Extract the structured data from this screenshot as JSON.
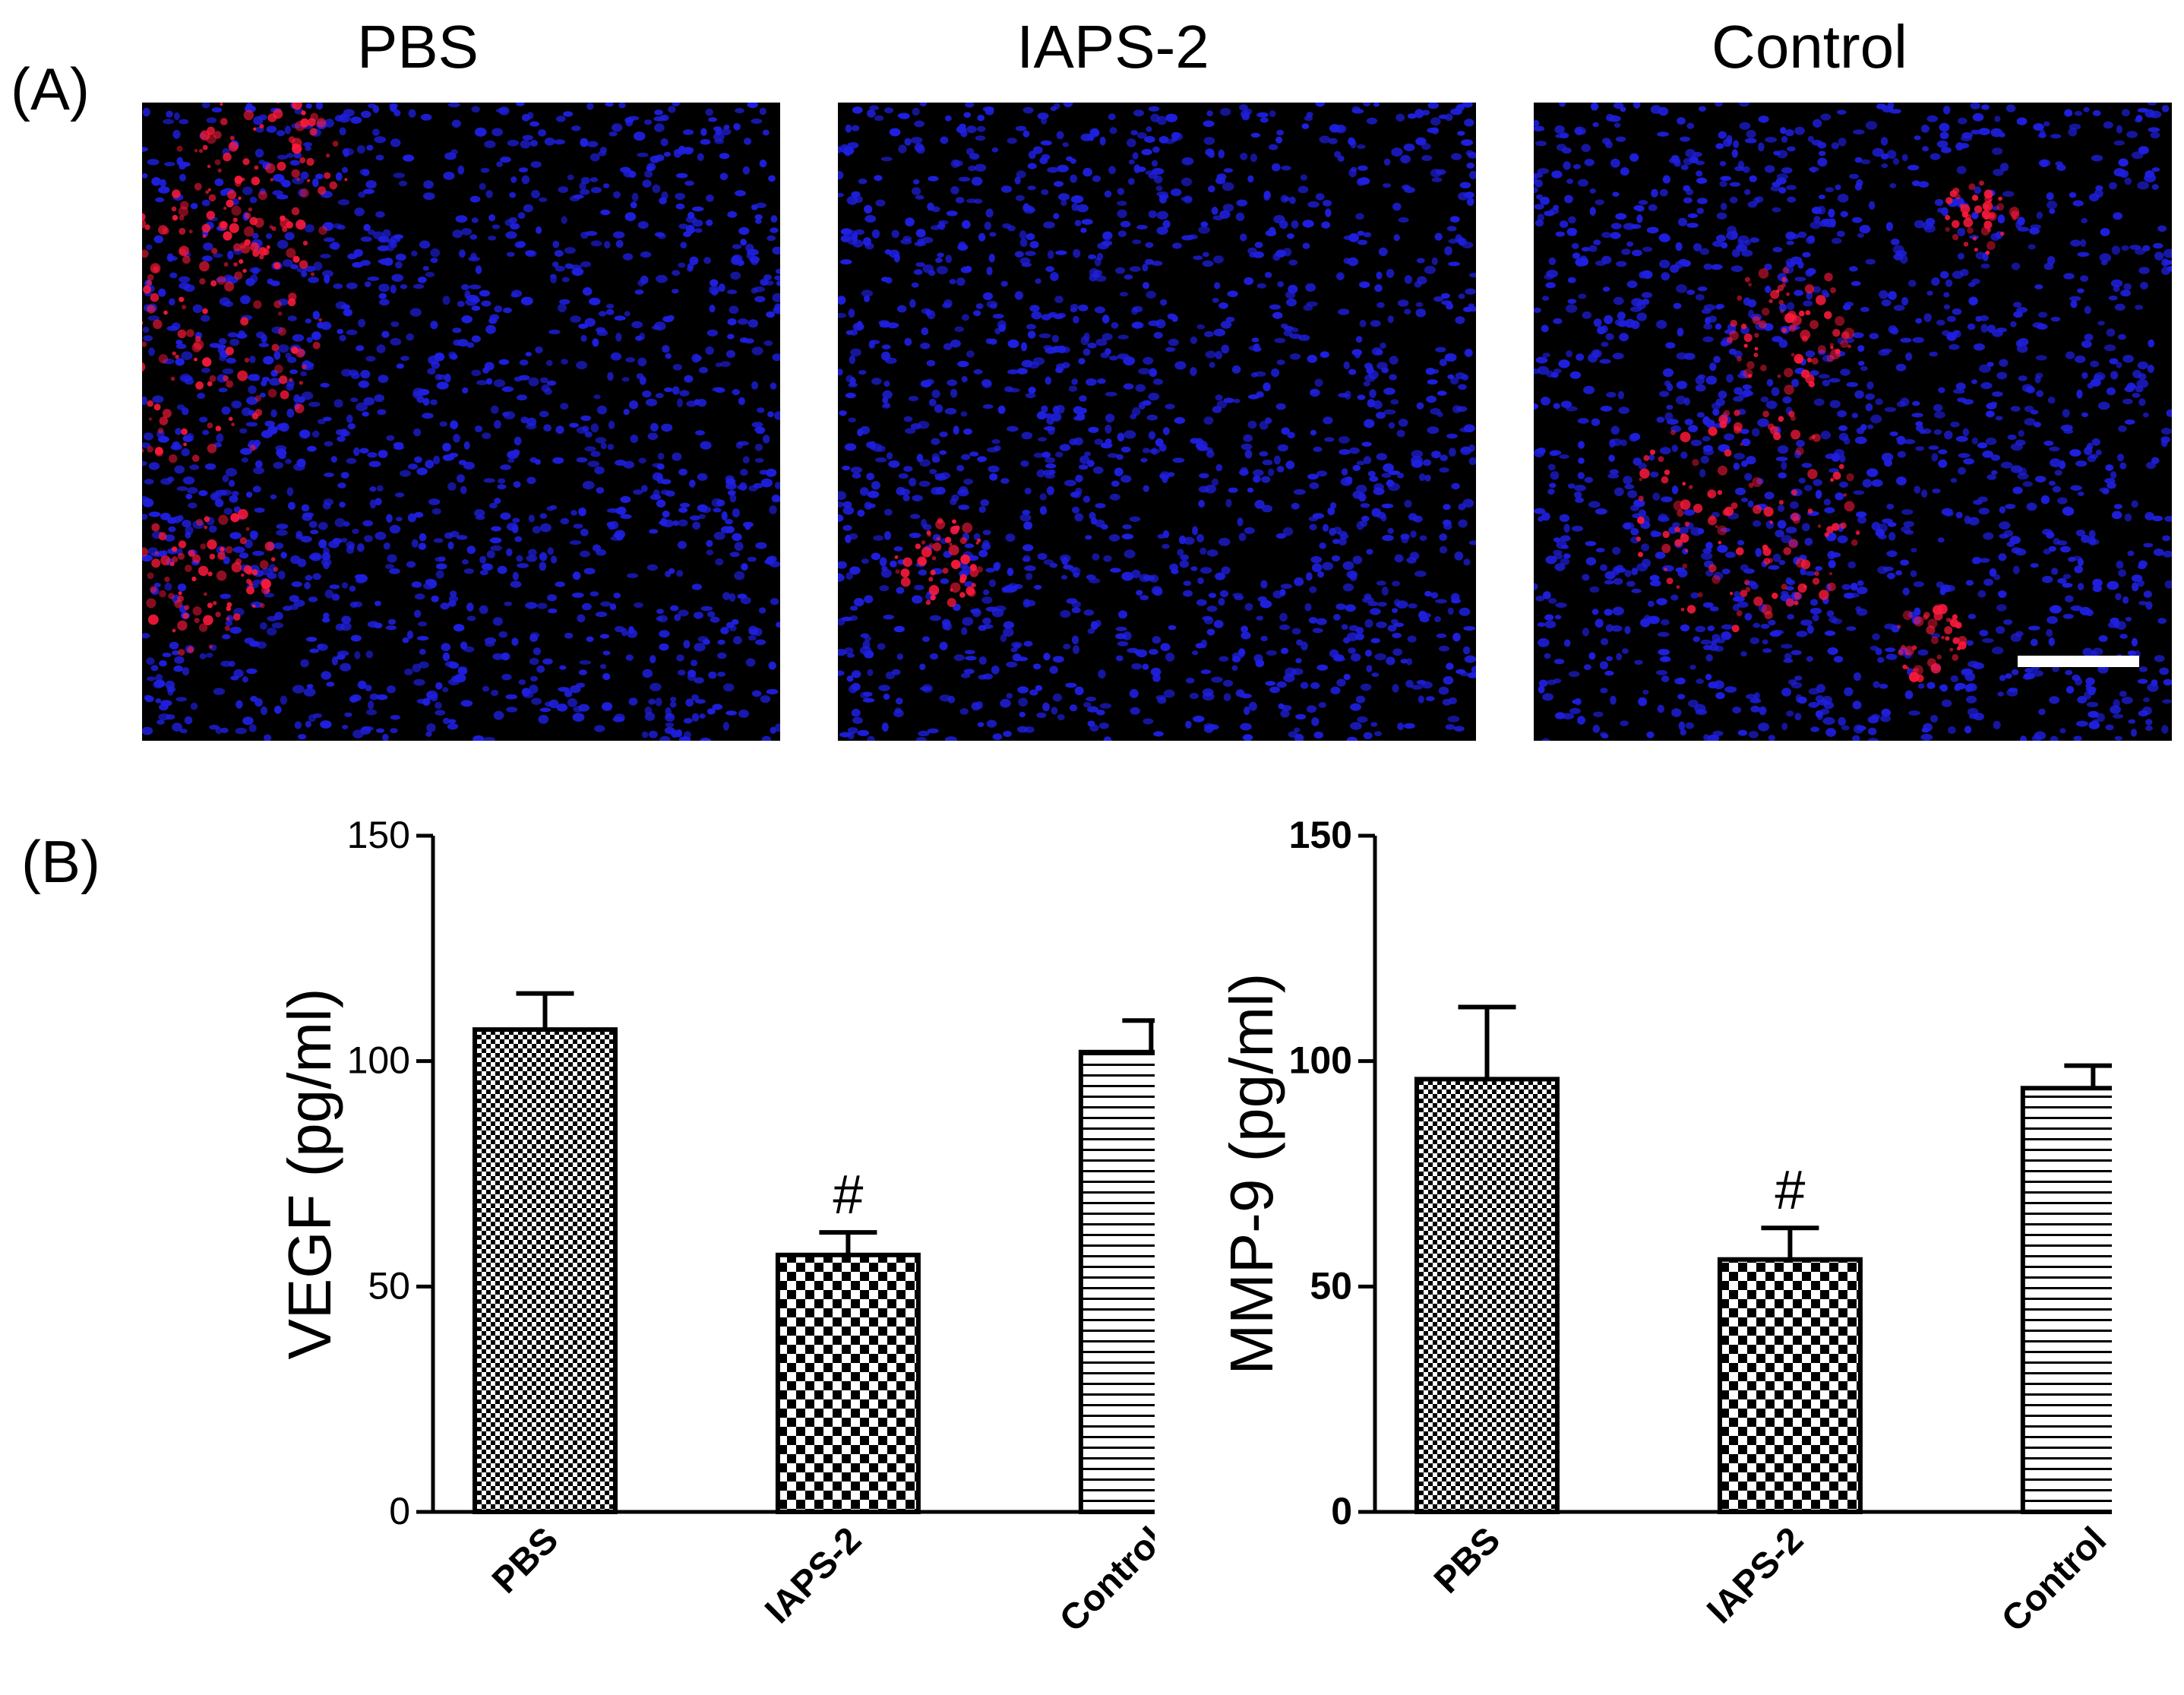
{
  "panel_a": {
    "label": "(A)",
    "images": [
      {
        "title": "PBS"
      },
      {
        "title": "IAPS-2"
      },
      {
        "title": "Control"
      }
    ],
    "colors": {
      "nuclei": "#1f1fe0",
      "stain": "#ff1a3c",
      "background": "#000000"
    }
  },
  "panel_b": {
    "label": "(B)"
  },
  "chart_data": [
    {
      "type": "bar",
      "categories": [
        "PBS",
        "IAPS-2",
        "Control"
      ],
      "values": [
        107,
        57,
        102
      ],
      "errors": [
        8,
        5,
        7
      ],
      "annotations": [
        {
          "category": "IAPS-2",
          "text": "#"
        }
      ],
      "patterns": [
        "fine-check",
        "coarse-check",
        "horizontal-lines"
      ],
      "ylabel": "VEGF (pg/ml)",
      "ylim": [
        0,
        150
      ],
      "yticks": [
        0,
        50,
        100,
        150
      ]
    },
    {
      "type": "bar",
      "categories": [
        "PBS",
        "IAPS-2",
        "Control"
      ],
      "values": [
        96,
        56,
        94
      ],
      "errors": [
        16,
        7,
        5
      ],
      "annotations": [
        {
          "category": "IAPS-2",
          "text": "#"
        }
      ],
      "patterns": [
        "fine-check",
        "coarse-check",
        "horizontal-lines"
      ],
      "ylabel": "MMP-9 (pg/ml)",
      "ylim": [
        0,
        150
      ],
      "yticks": [
        0,
        50,
        100,
        150
      ]
    }
  ]
}
